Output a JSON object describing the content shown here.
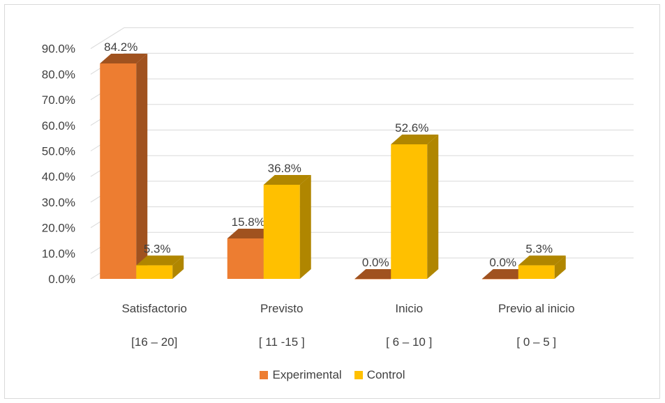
{
  "chart_data": {
    "type": "bar",
    "categories": [
      "Satisfactorio",
      "Previsto",
      "Inicio",
      "Previo al inicio"
    ],
    "category_ranges": [
      "[16 – 20]",
      "[ 11 -15 ]",
      "[ 6 – 10 ]",
      "[ 0 – 5 ]"
    ],
    "series": [
      {
        "name": "Experimental",
        "values": [
          84.2,
          15.8,
          0.0,
          0.0
        ],
        "labels": [
          "84.2%",
          "15.8%",
          "0.0%",
          "0.0%"
        ],
        "color": "#ED7D31",
        "side_color": "#A0521F"
      },
      {
        "name": "Control",
        "values": [
          5.3,
          36.8,
          52.6,
          5.3
        ],
        "labels": [
          "5.3%",
          "36.8%",
          "52.6%",
          "5.3%"
        ],
        "color": "#FFC000",
        "side_color": "#B08600"
      }
    ],
    "y_ticks": [
      "0.0%",
      "10.0%",
      "20.0%",
      "30.0%",
      "40.0%",
      "50.0%",
      "60.0%",
      "70.0%",
      "80.0%",
      "90.0%"
    ],
    "ylim": [
      0,
      90
    ],
    "grid": true,
    "legend_position": "bottom",
    "style": "3d-clustered-column"
  }
}
